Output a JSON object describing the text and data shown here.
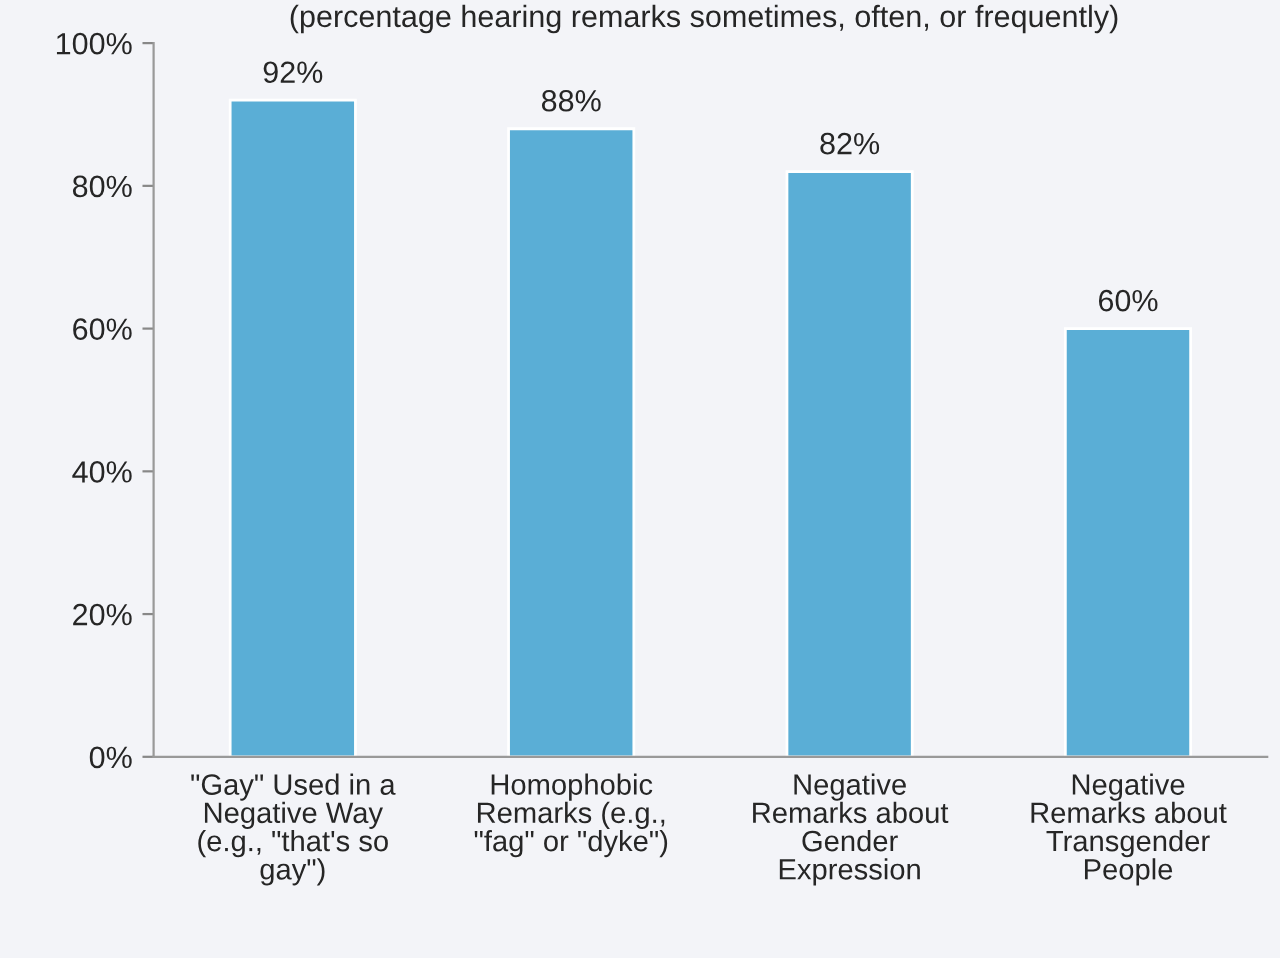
{
  "chart_data": {
    "type": "bar",
    "subtitle": "(percentage hearing remarks sometimes, often, or frequently)",
    "categories": [
      "\"Gay\" Used in a\nNegative Way\n(e.g., \"that's so\ngay\")",
      "Homophobic\nRemarks (e.g.,\n\"fag\" or \"dyke\")",
      "Negative\nRemarks about\nGender\nExpression",
      "Negative\nRemarks about\nTransgender\nPeople"
    ],
    "values": [
      92,
      88,
      82,
      60
    ],
    "color": "#5aaed6",
    "value_labels": [
      "92%",
      "88%",
      "82%",
      "60%"
    ],
    "ylim": [
      0,
      100
    ],
    "yticks": [
      {
        "value": 0,
        "label": "0%"
      },
      {
        "value": 20,
        "label": "20%"
      },
      {
        "value": 40,
        "label": "40%"
      },
      {
        "value": 60,
        "label": "60%"
      },
      {
        "value": 80,
        "label": "80%"
      },
      {
        "value": 100,
        "label": "100%"
      }
    ],
    "grid": false,
    "legend": false
  }
}
